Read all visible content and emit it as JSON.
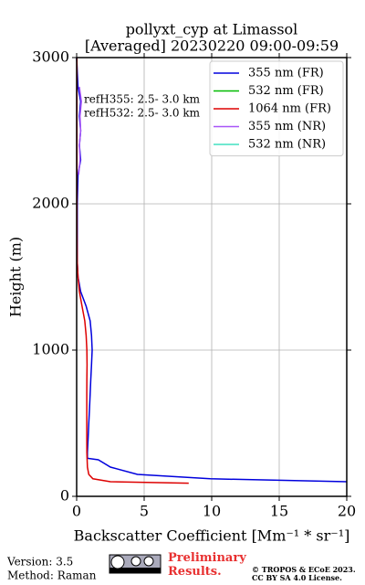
{
  "chart_data": {
    "type": "profile",
    "title": "pollyxt_cyp at Limassol",
    "subtitle": "[Averaged] 20230220 09:00-09:59",
    "x_label": "Backscatter Coefficient [Mm⁻¹ * sr⁻¹]",
    "y_label": "Height (m)",
    "xlim": [
      0,
      20
    ],
    "xticks": [
      0,
      5,
      10,
      15,
      20
    ],
    "ylim": [
      0,
      3000
    ],
    "yticks": [
      0,
      1000,
      2000,
      3000
    ],
    "grid": true,
    "legend": "upper right",
    "annotations": [
      "refH355:  2.5- 3.0 km",
      "refH532:  2.5- 3.0 km"
    ],
    "y": [
      90,
      100,
      120,
      150,
      200,
      250,
      260,
      300,
      400,
      500,
      600,
      700,
      800,
      900,
      1000,
      1100,
      1200,
      1300,
      1400,
      1500,
      1600,
      1800,
      2000,
      2200,
      2300,
      2400,
      2500,
      2600,
      2700,
      2800,
      2900,
      3000
    ],
    "series": [
      {
        "name": "355 nm (FR)",
        "color": "#0000dd",
        "values": [
          null,
          20,
          9.9,
          4.5,
          2.5,
          1.6,
          0.8,
          0.8,
          0.85,
          0.9,
          0.95,
          1.0,
          1.05,
          1.1,
          1.15,
          1.1,
          1.0,
          0.7,
          0.3,
          0.1,
          0.05,
          0.05,
          0.05,
          0.1,
          0.3,
          0.2,
          0.3,
          0.2,
          0.3,
          0.1,
          0.05,
          0.0
        ]
      },
      {
        "name": "532 nm (FR)",
        "color": "#00bb00",
        "values": [
          null,
          null,
          null,
          null,
          null,
          null,
          null,
          null,
          null,
          null,
          null,
          null,
          null,
          null,
          null,
          null,
          null,
          null,
          null,
          null,
          null,
          null,
          null,
          null,
          null,
          null,
          null,
          null,
          null,
          null,
          null,
          null
        ]
      },
      {
        "name": "1064 nm (FR)",
        "color": "#dd0000",
        "values": [
          8.3,
          2.5,
          1.2,
          0.9,
          0.8,
          0.78,
          0.77,
          0.76,
          0.75,
          0.75,
          0.75,
          0.75,
          0.76,
          0.77,
          0.76,
          0.7,
          0.6,
          0.4,
          0.2,
          0.1,
          0.05,
          0.03,
          0.02,
          0.02,
          0.02,
          0.02,
          0.02,
          0.02,
          0.02,
          0.02,
          0.02,
          0.02
        ]
      },
      {
        "name": "355 nm (NR)",
        "color": "#a855f7",
        "values": [
          null,
          null,
          null,
          null,
          null,
          null,
          null,
          null,
          null,
          null,
          null,
          null,
          null,
          null,
          null,
          null,
          null,
          null,
          null,
          null,
          null,
          null,
          null,
          0.15,
          0.25,
          0.2,
          0.3,
          0.25,
          0.35,
          0.2,
          null,
          null
        ]
      },
      {
        "name": "532 nm (NR)",
        "color": "#40e0c0",
        "values": [
          null,
          null,
          null,
          null,
          null,
          null,
          null,
          null,
          null,
          null,
          null,
          null,
          null,
          null,
          null,
          null,
          null,
          null,
          null,
          null,
          null,
          null,
          null,
          null,
          null,
          null,
          null,
          null,
          null,
          null,
          null,
          null
        ]
      }
    ]
  },
  "footer": {
    "version": "Version: 3.5",
    "method": "Method: Raman",
    "status": "Preliminary Results.",
    "copyright": "© TROPOS & ECoE 2023.",
    "license": "CC BY SA 4.0 License."
  }
}
